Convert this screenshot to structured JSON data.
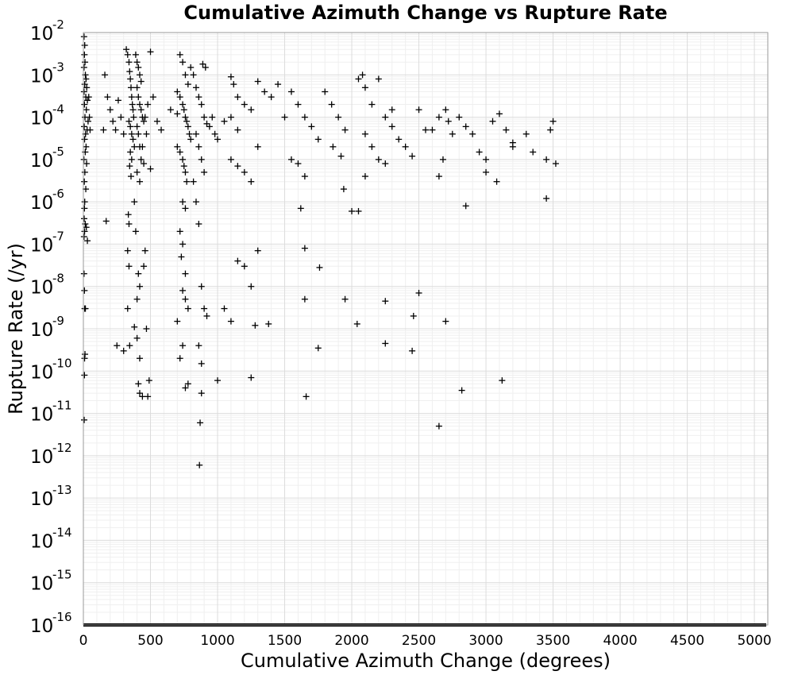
{
  "chart_data": {
    "type": "scatter",
    "title": "Cumulative Azimuth Change vs Rupture Rate",
    "xlabel": "Cumulative Azimuth Change (degrees)",
    "ylabel": "Rupture Rate (/yr)",
    "xlim": [
      0,
      5100
    ],
    "ylim": [
      1e-16,
      0.01
    ],
    "y_scale": "log",
    "grid": true,
    "x_ticks": [
      "0",
      "500",
      "1000",
      "1500",
      "2000",
      "2500",
      "3000",
      "3500",
      "4000",
      "4500",
      "5000"
    ],
    "y_ticks": [
      {
        "base": "10",
        "exp": "-16"
      },
      {
        "base": "10",
        "exp": "-15"
      },
      {
        "base": "10",
        "exp": "-14"
      },
      {
        "base": "10",
        "exp": "-13"
      },
      {
        "base": "10",
        "exp": "-12"
      },
      {
        "base": "10",
        "exp": "-11"
      },
      {
        "base": "10",
        "exp": "-10"
      },
      {
        "base": "10",
        "exp": "-9"
      },
      {
        "base": "10",
        "exp": "-8"
      },
      {
        "base": "10",
        "exp": "-7"
      },
      {
        "base": "10",
        "exp": "-6"
      },
      {
        "base": "10",
        "exp": "-5"
      },
      {
        "base": "10",
        "exp": "-4"
      },
      {
        "base": "10",
        "exp": "-3"
      },
      {
        "base": "10",
        "exp": "-2"
      }
    ],
    "marker": "+",
    "marker_color": "#000000",
    "series": [
      {
        "points": [
          [
            5,
            0.008
          ],
          [
            10,
            0.005
          ],
          [
            8,
            0.003
          ],
          [
            12,
            0.002
          ],
          [
            5,
            0.0015
          ],
          [
            15,
            0.001
          ],
          [
            20,
            0.0008
          ],
          [
            10,
            0.0006
          ],
          [
            25,
            0.0005
          ],
          [
            5,
            0.0004
          ],
          [
            18,
            0.0003
          ],
          [
            30,
            0.00025
          ],
          [
            8,
            0.0002
          ],
          [
            22,
            0.00015
          ],
          [
            12,
            0.0001
          ],
          [
            35,
            8e-05
          ],
          [
            6,
            6e-05
          ],
          [
            28,
            5e-05
          ],
          [
            16,
            4e-05
          ],
          [
            9,
            3e-05
          ],
          [
            20,
            2e-05
          ],
          [
            14,
            1.5e-05
          ],
          [
            4,
            1e-05
          ],
          [
            24,
            8e-06
          ],
          [
            11,
            5e-06
          ],
          [
            7,
            3e-06
          ],
          [
            18,
            2e-06
          ],
          [
            10,
            1e-06
          ],
          [
            8,
            7e-07
          ],
          [
            6,
            4e-07
          ],
          [
            14,
            3e-07
          ],
          [
            22,
            2.5e-07
          ],
          [
            9,
            2e-07
          ],
          [
            5,
            1.5e-07
          ],
          [
            30,
            1.2e-07
          ],
          [
            5,
            2e-08
          ],
          [
            8,
            8e-09
          ],
          [
            10,
            3e-09
          ],
          [
            12,
            2.5e-10
          ],
          [
            8,
            8e-11
          ],
          [
            6,
            7e-12
          ],
          [
            9,
            2e-10
          ],
          [
            15,
            3e-09
          ],
          [
            40,
            0.0003
          ],
          [
            45,
            0.0001
          ],
          [
            50,
            5e-05
          ],
          [
            160,
            0.001
          ],
          [
            180,
            0.0003
          ],
          [
            200,
            0.00015
          ],
          [
            220,
            8e-05
          ],
          [
            240,
            5e-05
          ],
          [
            260,
            0.00025
          ],
          [
            280,
            0.0001
          ],
          [
            300,
            4e-05
          ],
          [
            150,
            5e-05
          ],
          [
            170,
            3.5e-07
          ],
          [
            250,
            4e-10
          ],
          [
            300,
            3e-10
          ],
          [
            320,
            0.004
          ],
          [
            330,
            0.003
          ],
          [
            340,
            0.002
          ],
          [
            345,
            0.0012
          ],
          [
            350,
            0.0008
          ],
          [
            355,
            0.0005
          ],
          [
            360,
            0.0003
          ],
          [
            365,
            0.0002
          ],
          [
            370,
            0.00015
          ],
          [
            375,
            0.0001
          ],
          [
            340,
            8e-05
          ],
          [
            350,
            6e-05
          ],
          [
            360,
            4e-05
          ],
          [
            370,
            3e-05
          ],
          [
            380,
            2e-05
          ],
          [
            350,
            1.5e-05
          ],
          [
            360,
            1e-05
          ],
          [
            345,
            7e-06
          ],
          [
            355,
            4e-06
          ],
          [
            335,
            5e-07
          ],
          [
            340,
            3e-07
          ],
          [
            330,
            7e-08
          ],
          [
            340,
            3e-08
          ],
          [
            330,
            3e-09
          ],
          [
            345,
            4e-10
          ],
          [
            390,
            0.003
          ],
          [
            400,
            0.002
          ],
          [
            410,
            0.0015
          ],
          [
            420,
            0.001
          ],
          [
            430,
            0.0007
          ],
          [
            400,
            0.0005
          ],
          [
            410,
            0.0003
          ],
          [
            420,
            0.0002
          ],
          [
            430,
            0.00015
          ],
          [
            440,
            0.0001
          ],
          [
            450,
            8e-05
          ],
          [
            400,
            6e-05
          ],
          [
            410,
            4e-05
          ],
          [
            420,
            2e-05
          ],
          [
            430,
            1e-05
          ],
          [
            400,
            5e-06
          ],
          [
            420,
            3e-06
          ],
          [
            380,
            1e-06
          ],
          [
            390,
            2e-07
          ],
          [
            410,
            2e-08
          ],
          [
            420,
            1e-08
          ],
          [
            400,
            5e-09
          ],
          [
            380,
            1.1e-09
          ],
          [
            400,
            6e-10
          ],
          [
            420,
            2e-10
          ],
          [
            410,
            5e-11
          ],
          [
            420,
            3e-11
          ],
          [
            440,
            2.5e-11
          ],
          [
            460,
            7e-08
          ],
          [
            450,
            3e-08
          ],
          [
            470,
            1e-09
          ],
          [
            480,
            2.5e-11
          ],
          [
            490,
            6e-11
          ],
          [
            500,
            0.0035
          ],
          [
            520,
            0.0003
          ],
          [
            550,
            8e-05
          ],
          [
            580,
            5e-05
          ],
          [
            480,
            0.0002
          ],
          [
            460,
            0.0001
          ],
          [
            470,
            4e-05
          ],
          [
            500,
            6e-06
          ],
          [
            440,
            2e-05
          ],
          [
            450,
            8e-06
          ],
          [
            650,
            0.00015
          ],
          [
            700,
            0.00012
          ],
          [
            720,
            0.003
          ],
          [
            740,
            0.002
          ],
          [
            760,
            0.001
          ],
          [
            780,
            0.0006
          ],
          [
            700,
            0.0004
          ],
          [
            720,
            0.0003
          ],
          [
            740,
            0.0002
          ],
          [
            750,
            0.00015
          ],
          [
            760,
            0.0001
          ],
          [
            770,
            8e-05
          ],
          [
            780,
            6e-05
          ],
          [
            790,
            4e-05
          ],
          [
            800,
            3e-05
          ],
          [
            700,
            2e-05
          ],
          [
            720,
            1.5e-05
          ],
          [
            740,
            1e-05
          ],
          [
            750,
            7e-06
          ],
          [
            760,
            5e-06
          ],
          [
            770,
            3e-06
          ],
          [
            740,
            1e-06
          ],
          [
            760,
            7e-07
          ],
          [
            720,
            2e-07
          ],
          [
            740,
            1e-07
          ],
          [
            730,
            5e-08
          ],
          [
            760,
            2e-08
          ],
          [
            740,
            8e-09
          ],
          [
            760,
            5e-09
          ],
          [
            780,
            3e-09
          ],
          [
            700,
            1.5e-09
          ],
          [
            740,
            4e-10
          ],
          [
            720,
            2e-10
          ],
          [
            760,
            4e-11
          ],
          [
            780,
            5e-11
          ],
          [
            800,
            0.0015
          ],
          [
            820,
            0.001
          ],
          [
            840,
            0.0005
          ],
          [
            860,
            0.0003
          ],
          [
            880,
            0.0002
          ],
          [
            900,
            0.0001
          ],
          [
            920,
            7e-05
          ],
          [
            840,
            4e-05
          ],
          [
            860,
            2e-05
          ],
          [
            880,
            1e-05
          ],
          [
            900,
            5e-06
          ],
          [
            820,
            3e-06
          ],
          [
            840,
            1e-06
          ],
          [
            860,
            3e-07
          ],
          [
            880,
            1e-08
          ],
          [
            900,
            3e-09
          ],
          [
            860,
            4e-10
          ],
          [
            880,
            1.5e-10
          ],
          [
            880,
            3e-11
          ],
          [
            870,
            6e-12
          ],
          [
            865,
            6e-13
          ],
          [
            890,
            0.0018
          ],
          [
            910,
            0.0015
          ],
          [
            920,
            2e-09
          ],
          [
            940,
            6e-05
          ],
          [
            960,
            0.0001
          ],
          [
            980,
            4e-05
          ],
          [
            1000,
            3e-05
          ],
          [
            1050,
            8e-05
          ],
          [
            1100,
            0.0001
          ],
          [
            1150,
            5e-05
          ],
          [
            1100,
            0.0009
          ],
          [
            1120,
            0.0006
          ],
          [
            1150,
            0.0003
          ],
          [
            1200,
            0.0002
          ],
          [
            1250,
            0.00015
          ],
          [
            1100,
            1e-05
          ],
          [
            1150,
            7e-06
          ],
          [
            1200,
            5e-06
          ],
          [
            1250,
            3e-06
          ],
          [
            1300,
            2e-05
          ],
          [
            1050,
            3e-09
          ],
          [
            1100,
            1.5e-09
          ],
          [
            1150,
            4e-08
          ],
          [
            1200,
            3e-08
          ],
          [
            1250,
            1e-08
          ],
          [
            1300,
            7e-08
          ],
          [
            1000,
            6e-11
          ],
          [
            1250,
            7e-11
          ],
          [
            1280,
            1.2e-09
          ],
          [
            1380,
            1.3e-09
          ],
          [
            1300,
            0.0007
          ],
          [
            1350,
            0.0004
          ],
          [
            1400,
            0.0003
          ],
          [
            1450,
            0.0006
          ],
          [
            1500,
            0.0001
          ],
          [
            1550,
            0.0004
          ],
          [
            1600,
            0.0002
          ],
          [
            1650,
            0.0001
          ],
          [
            1700,
            6e-05
          ],
          [
            1750,
            3e-05
          ],
          [
            1550,
            1e-05
          ],
          [
            1600,
            8e-06
          ],
          [
            1650,
            4e-06
          ],
          [
            1620,
            7e-07
          ],
          [
            1650,
            8e-08
          ],
          [
            1760,
            2.8e-08
          ],
          [
            1650,
            5e-09
          ],
          [
            1750,
            3.5e-10
          ],
          [
            1660,
            2.5e-11
          ],
          [
            1800,
            0.0004
          ],
          [
            1850,
            0.0002
          ],
          [
            1900,
            0.0001
          ],
          [
            1950,
            5e-05
          ],
          [
            1860,
            2e-05
          ],
          [
            1920,
            1.2e-05
          ],
          [
            1940,
            2e-06
          ],
          [
            2000,
            6e-07
          ],
          [
            2050,
            6e-07
          ],
          [
            1950,
            5e-09
          ],
          [
            2040,
            1.3e-09
          ],
          [
            2050,
            0.0008
          ],
          [
            2080,
            0.001
          ],
          [
            2100,
            0.0005
          ],
          [
            2150,
            0.0002
          ],
          [
            2200,
            0.0008
          ],
          [
            2250,
            0.0001
          ],
          [
            2300,
            6e-05
          ],
          [
            2100,
            4e-05
          ],
          [
            2150,
            2e-05
          ],
          [
            2200,
            1e-05
          ],
          [
            2250,
            8e-06
          ],
          [
            2100,
            4e-06
          ],
          [
            2250,
            4.5e-09
          ],
          [
            2250,
            4.5e-10
          ],
          [
            2300,
            0.00015
          ],
          [
            2350,
            3e-05
          ],
          [
            2400,
            2e-05
          ],
          [
            2450,
            1.2e-05
          ],
          [
            2500,
            0.00015
          ],
          [
            2550,
            5e-05
          ],
          [
            2500,
            7e-09
          ],
          [
            2460,
            2e-09
          ],
          [
            2450,
            3e-10
          ],
          [
            2600,
            5e-05
          ],
          [
            2650,
            0.0001
          ],
          [
            2700,
            0.00015
          ],
          [
            2720,
            8e-05
          ],
          [
            2750,
            4e-05
          ],
          [
            2680,
            1e-05
          ],
          [
            2650,
            4e-06
          ],
          [
            2850,
            8e-07
          ],
          [
            2700,
            1.5e-09
          ],
          [
            2820,
            3.5e-11
          ],
          [
            2650,
            5e-12
          ],
          [
            2800,
            0.0001
          ],
          [
            2850,
            6e-05
          ],
          [
            2900,
            4e-05
          ],
          [
            2950,
            1.5e-05
          ],
          [
            3000,
            1e-05
          ],
          [
            3050,
            8e-05
          ],
          [
            3100,
            0.00012
          ],
          [
            3000,
            5e-06
          ],
          [
            3080,
            3e-06
          ],
          [
            3120,
            6e-11
          ],
          [
            3150,
            5e-05
          ],
          [
            3200,
            2e-05
          ],
          [
            3300,
            4e-05
          ],
          [
            3350,
            1.5e-05
          ],
          [
            3450,
            1e-05
          ],
          [
            3480,
            5e-05
          ],
          [
            3500,
            8e-05
          ],
          [
            3520,
            8e-06
          ],
          [
            3450,
            1.2e-06
          ],
          [
            3200,
            2.5e-05
          ]
        ]
      }
    ],
    "zero_rate_band": {
      "value": 1e-16,
      "x_from": 0,
      "x_to": 5100
    }
  }
}
